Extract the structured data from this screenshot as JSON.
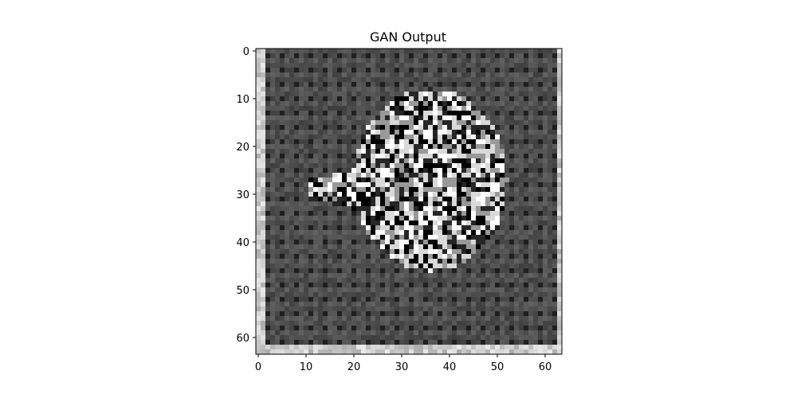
{
  "chart_data": {
    "type": "heatmap",
    "title": "GAN Output",
    "xlabel": "",
    "ylabel": "",
    "grid": false,
    "colormap": "gray",
    "shape": [
      64,
      64
    ],
    "xlim": [
      -0.5,
      63.5
    ],
    "ylim": [
      63.5,
      -0.5
    ],
    "x_ticks": [
      0,
      10,
      20,
      30,
      40,
      50,
      60
    ],
    "y_ticks": [
      0,
      10,
      20,
      30,
      40,
      50,
      60
    ],
    "x_tick_labels": [
      "0",
      "10",
      "20",
      "30",
      "40",
      "50",
      "60"
    ],
    "y_tick_labels": [
      "0",
      "10",
      "20",
      "30",
      "40",
      "50",
      "60"
    ],
    "background_level": 0.3,
    "checker_level": 0.12,
    "border_level": 0.92,
    "blob": {
      "description": "bright noisy head-shaped region",
      "center": [
        36,
        27
      ],
      "radii": [
        16,
        19
      ],
      "extension_toward": [
        11,
        27
      ],
      "levels": [
        0.0,
        0.15,
        0.6,
        0.85,
        1.0
      ]
    }
  }
}
